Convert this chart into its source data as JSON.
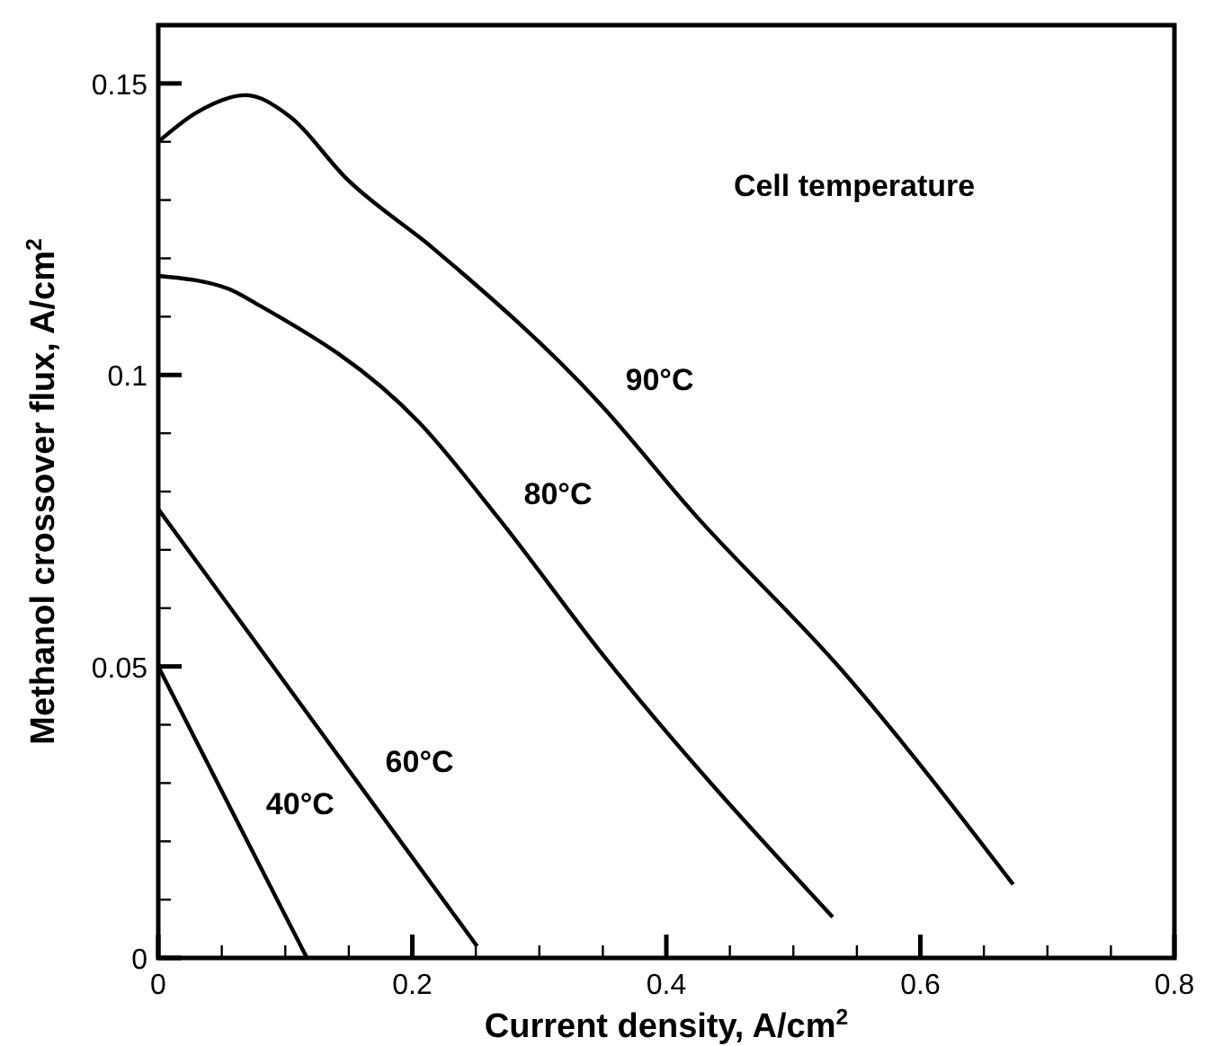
{
  "chart_data": {
    "type": "line",
    "xlabel": "Current density, A/cm$^{2}$",
    "ylabel": "Methanol crossover flux, A/cm$^{2}$",
    "annotations": [
      "Cell temperature"
    ],
    "xlim": [
      0,
      0.8
    ],
    "ylim": [
      0,
      0.16
    ],
    "xticks": [
      0,
      {
        "value": 0.05,
        "label": null
      },
      {
        "value": 0.1,
        "label": null
      },
      {
        "value": 0.15,
        "label": null
      },
      0.2,
      {
        "value": 0.25,
        "label": null
      },
      {
        "value": 0.3,
        "label": null
      },
      {
        "value": 0.35,
        "label": null
      },
      0.4,
      {
        "value": 0.45,
        "label": null
      },
      {
        "value": 0.5,
        "label": null
      },
      {
        "value": 0.55,
        "label": null
      },
      0.6,
      {
        "value": 0.65,
        "label": null
      },
      {
        "value": 0.7,
        "label": null
      },
      {
        "value": 0.75,
        "label": null
      },
      0.8
    ],
    "yticks": [
      0,
      {
        "value": 0.01,
        "label": null
      },
      {
        "value": 0.02,
        "label": null
      },
      {
        "value": 0.03,
        "label": null
      },
      {
        "value": 0.04,
        "label": null
      },
      0.05,
      {
        "value": 0.06,
        "label": null
      },
      {
        "value": 0.07,
        "label": null
      },
      {
        "value": 0.08,
        "label": null
      },
      {
        "value": 0.09,
        "label": null
      },
      0.1,
      {
        "value": 0.11,
        "label": null
      },
      {
        "value": 0.12,
        "label": null
      },
      {
        "value": 0.13,
        "label": null
      },
      {
        "value": 0.14,
        "label": null
      },
      0.15
    ],
    "grid": false,
    "marker": "none",
    "line_style": "solid",
    "series": [
      {
        "name": "90°C",
        "color": "#000000",
        "x": [
          0,
          0.03,
          0.069,
          0.102,
          0.149,
          0.216,
          0.348,
          0.421,
          0.538,
          0.673
        ],
        "values": [
          0.14,
          0.145,
          0.148,
          0.1446,
          0.1335,
          0.1218,
          0.095,
          0.0764,
          0.0494,
          0.0126
        ]
      },
      {
        "name": "80°C",
        "color": "#000000",
        "x": [
          0,
          0.055,
          0.079,
          0.206,
          0.268,
          0.35,
          0.531
        ],
        "values": [
          0.117,
          0.1148,
          0.112,
          0.0917,
          0.0754,
          0.052,
          0.007
        ]
      },
      {
        "name": "60°C",
        "color": "#000000",
        "x": [
          0,
          0.065,
          0.159,
          0.251
        ],
        "values": [
          0.077,
          0.0576,
          0.0295,
          0.002
        ]
      },
      {
        "name": "40°C",
        "color": "#000000",
        "x": [
          0,
          0.032,
          0.065,
          0.117
        ],
        "values": [
          0.05,
          0.0363,
          0.0222,
          0
        ]
      }
    ]
  }
}
